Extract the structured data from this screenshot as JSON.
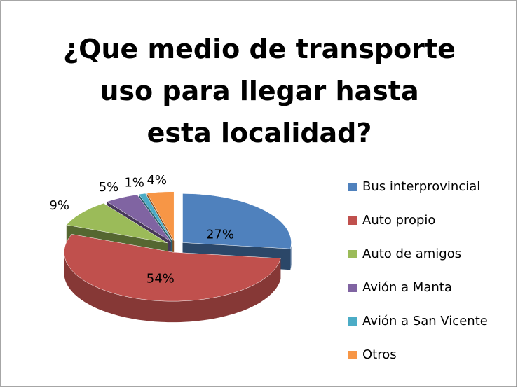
{
  "chart_data": {
    "type": "pie3d",
    "title": "¿Que medio de transporte uso para llegar hasta esta localidad?",
    "categories": [
      "Bus interprovincial",
      "Auto propio",
      "Auto de amigos",
      "Avión a Manta",
      "Avión a San Vicente",
      "Otros"
    ],
    "values": [
      27,
      54,
      9,
      5,
      1,
      4
    ],
    "value_labels": [
      "27%",
      "54%",
      "9%",
      "5%",
      "1%",
      "4%"
    ],
    "colors": [
      "#4f81bd",
      "#c0504d",
      "#9bbb59",
      "#8064a2",
      "#4bacc6",
      "#f79646"
    ],
    "legend": "right"
  }
}
